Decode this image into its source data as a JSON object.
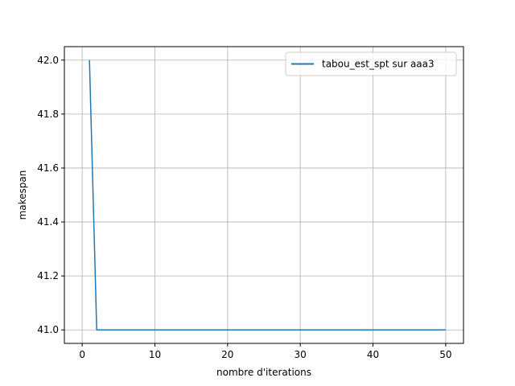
{
  "chart_data": {
    "type": "line",
    "title": "",
    "xlabel": "nombre d'iterations",
    "ylabel": "makespan",
    "xlim": [
      -2.45,
      52.45
    ],
    "ylim": [
      40.95,
      42.05
    ],
    "xticks": [
      0,
      10,
      20,
      30,
      40,
      50
    ],
    "xtick_labels": [
      "0",
      "10",
      "20",
      "30",
      "40",
      "50"
    ],
    "yticks": [
      41.0,
      41.2,
      41.4,
      41.6,
      41.8,
      42.0
    ],
    "ytick_labels": [
      "41.0",
      "41.2",
      "41.4",
      "41.6",
      "41.8",
      "42.0"
    ],
    "grid": true,
    "legend_position": "top-right",
    "series": [
      {
        "name": "tabou_est_spt sur aaa3",
        "color": "#1f77b4",
        "x": [
          1,
          2,
          3,
          4,
          5,
          6,
          7,
          8,
          9,
          10,
          11,
          12,
          13,
          14,
          15,
          16,
          17,
          18,
          19,
          20,
          21,
          22,
          23,
          24,
          25,
          26,
          27,
          28,
          29,
          30,
          31,
          32,
          33,
          34,
          35,
          36,
          37,
          38,
          39,
          40,
          41,
          42,
          43,
          44,
          45,
          46,
          47,
          48,
          49,
          50
        ],
        "y": [
          42,
          41,
          41,
          41,
          41,
          41,
          41,
          41,
          41,
          41,
          41,
          41,
          41,
          41,
          41,
          41,
          41,
          41,
          41,
          41,
          41,
          41,
          41,
          41,
          41,
          41,
          41,
          41,
          41,
          41,
          41,
          41,
          41,
          41,
          41,
          41,
          41,
          41,
          41,
          41,
          41,
          41,
          41,
          41,
          41,
          41,
          41,
          41,
          41,
          41
        ]
      }
    ]
  }
}
